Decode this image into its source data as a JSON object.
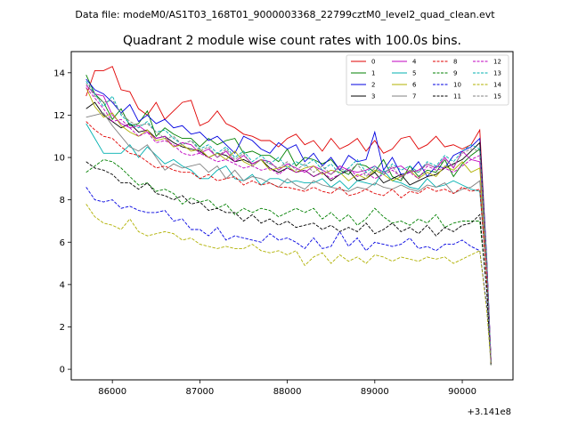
{
  "header": {
    "suptitle": "Data file: modeM0/AS1T03_168T01_9000003368_22799cztM0_level2_quad_clean.evt",
    "title": "Quadrant 2 module wise count rates with 100.0s bins."
  },
  "chart_data": {
    "type": "line",
    "title": "Quadrant 2 module wise count rates with 100.0s bins.",
    "xlabel": "",
    "ylabel": "",
    "x_offset_label": "+3.141e8",
    "xlim": [
      85530,
      90580
    ],
    "ylim": [
      -0.5,
      15
    ],
    "xticks": [
      86000,
      87000,
      88000,
      89000,
      90000
    ],
    "xtick_labels": [
      "86000",
      "87000",
      "88000",
      "89000",
      "90000"
    ],
    "yticks": [
      0,
      2,
      4,
      6,
      8,
      10,
      12,
      14
    ],
    "ytick_labels": [
      "0",
      "2",
      "4",
      "6",
      "8",
      "10",
      "12",
      "14"
    ],
    "grid": false,
    "legend_position": "top-right",
    "x": [
      85700,
      85800,
      85900,
      86000,
      86100,
      86200,
      86300,
      86400,
      86500,
      86600,
      86700,
      86800,
      86900,
      87000,
      87100,
      87200,
      87300,
      87400,
      87500,
      87600,
      87700,
      87800,
      87900,
      88000,
      88100,
      88200,
      88300,
      88400,
      88500,
      88600,
      88700,
      88800,
      88900,
      89000,
      89100,
      89200,
      89300,
      89400,
      89500,
      89600,
      89700,
      89800,
      89900,
      90000,
      90100,
      90200,
      90280,
      90330
    ],
    "series": [
      {
        "name": "0",
        "color": "#e00000",
        "dash": "solid",
        "values": [
          12.9,
          14.1,
          14.1,
          14.3,
          13.2,
          13.1,
          12.3,
          12.0,
          12.6,
          11.8,
          12.2,
          12.6,
          12.7,
          11.5,
          11.7,
          12.2,
          11.6,
          11.4,
          11.1,
          11.0,
          10.8,
          10.8,
          10.5,
          10.9,
          11.1,
          10.6,
          10.8,
          10.3,
          10.9,
          10.4,
          10.6,
          10.9,
          10.3,
          10.8,
          10.2,
          10.4,
          10.9,
          11.0,
          10.4,
          10.6,
          11.0,
          10.5,
          10.6,
          10.4,
          10.6,
          11.3,
          5.2,
          0.3
        ]
      },
      {
        "name": "1",
        "color": "#008000",
        "dash": "solid",
        "values": [
          13.9,
          13.0,
          12.6,
          11.8,
          12.3,
          11.5,
          11.6,
          12.2,
          11.0,
          11.4,
          11.1,
          10.9,
          10.9,
          10.5,
          10.9,
          10.6,
          10.8,
          10.9,
          10.2,
          10.3,
          10.1,
          10.1,
          9.8,
          10.4,
          9.6,
          10.0,
          9.9,
          9.7,
          9.9,
          9.4,
          9.2,
          9.7,
          9.6,
          9.3,
          9.9,
          9.1,
          8.9,
          9.6,
          9.1,
          9.4,
          9.3,
          9.9,
          9.1,
          9.7,
          10.1,
          10.4,
          4.9,
          0.2
        ]
      },
      {
        "name": "2",
        "color": "#0000e0",
        "dash": "solid",
        "values": [
          13.7,
          13.2,
          13.0,
          12.6,
          12.1,
          12.5,
          11.7,
          12.0,
          11.6,
          11.8,
          11.4,
          11.5,
          11.1,
          11.2,
          10.8,
          11.0,
          10.6,
          10.2,
          11.0,
          10.8,
          10.4,
          10.2,
          10.7,
          10.4,
          10.6,
          9.8,
          10.2,
          9.6,
          10.0,
          9.4,
          10.1,
          9.8,
          9.9,
          11.2,
          9.4,
          10.0,
          9.2,
          9.3,
          9.8,
          9.1,
          9.6,
          9.5,
          10.1,
          10.3,
          10.5,
          10.9,
          5.3,
          0.3
        ]
      },
      {
        "name": "3",
        "color": "#000000",
        "dash": "solid",
        "values": [
          12.3,
          12.6,
          12.0,
          11.7,
          11.4,
          11.6,
          11.2,
          11.3,
          10.9,
          11.0,
          10.7,
          10.5,
          10.4,
          10.3,
          10.0,
          10.2,
          10.1,
          9.8,
          9.9,
          9.7,
          9.9,
          9.5,
          9.3,
          9.5,
          9.3,
          9.4,
          9.1,
          9.3,
          8.9,
          9.2,
          9.4,
          8.9,
          9.0,
          9.3,
          8.8,
          9.0,
          9.2,
          8.7,
          8.9,
          9.1,
          9.2,
          9.5,
          9.7,
          9.9,
          10.3,
          10.7,
          5.1,
          0.2
        ]
      },
      {
        "name": "4",
        "color": "#c000c0",
        "dash": "solid",
        "values": [
          13.4,
          13.0,
          12.9,
          12.0,
          11.6,
          11.4,
          11.5,
          11.2,
          10.9,
          11.0,
          10.5,
          10.7,
          10.6,
          10.2,
          10.4,
          10.0,
          10.3,
          9.8,
          10.1,
          9.7,
          9.9,
          9.8,
          9.4,
          9.7,
          9.5,
          9.3,
          9.6,
          9.4,
          9.2,
          9.6,
          9.4,
          9.3,
          9.4,
          9.6,
          9.3,
          9.5,
          9.6,
          9.3,
          9.4,
          9.7,
          9.5,
          10.0,
          9.5,
          10.3,
          9.9,
          9.8,
          5.0,
          0.3
        ]
      },
      {
        "name": "5",
        "color": "#00b0b0",
        "dash": "solid",
        "values": [
          11.6,
          10.9,
          10.2,
          10.2,
          10.2,
          10.6,
          10.0,
          10.5,
          10.1,
          9.7,
          9.9,
          9.6,
          9.4,
          9.0,
          9.0,
          9.4,
          9.6,
          9.0,
          8.9,
          9.2,
          8.7,
          9.0,
          9.0,
          8.8,
          8.9,
          8.8,
          8.8,
          9.0,
          8.6,
          8.9,
          8.5,
          8.9,
          8.8,
          8.7,
          9.4,
          8.9,
          8.8,
          8.6,
          8.5,
          9.0,
          8.6,
          8.7,
          8.9,
          8.7,
          8.5,
          8.4,
          4.5,
          0.2
        ]
      },
      {
        "name": "6",
        "color": "#b0b000",
        "dash": "solid",
        "values": [
          13.3,
          12.4,
          11.9,
          12.1,
          11.5,
          11.2,
          11.0,
          11.3,
          10.8,
          10.9,
          10.5,
          10.6,
          10.3,
          10.4,
          10.0,
          10.2,
          9.9,
          10.3,
          9.8,
          9.6,
          9.9,
          9.4,
          9.5,
          9.6,
          9.3,
          9.5,
          9.6,
          9.2,
          9.4,
          9.3,
          8.9,
          9.2,
          9.0,
          9.4,
          9.2,
          8.9,
          9.1,
          9.4,
          9.0,
          9.3,
          9.1,
          9.6,
          9.4,
          9.8,
          9.3,
          9.5,
          4.9,
          0.2
        ]
      },
      {
        "name": "7",
        "color": "#808080",
        "dash": "solid",
        "values": [
          11.9,
          12.0,
          12.1,
          11.5,
          11.0,
          10.5,
          10.3,
          10.6,
          10.0,
          9.4,
          9.7,
          9.5,
          9.6,
          9.7,
          9.3,
          9.6,
          9.0,
          9.4,
          8.9,
          9.1,
          9.0,
          8.8,
          8.6,
          9.0,
          8.7,
          8.5,
          8.9,
          8.7,
          8.6,
          8.5,
          8.4,
          8.6,
          8.5,
          8.8,
          8.6,
          8.5,
          8.7,
          8.5,
          8.4,
          8.7,
          8.6,
          8.8,
          8.3,
          8.5,
          8.6,
          8.9,
          4.5,
          0.2
        ]
      },
      {
        "name": "8",
        "color": "#e00000",
        "dash": "dashed",
        "values": [
          11.7,
          11.3,
          11.0,
          10.9,
          10.5,
          10.2,
          10.1,
          9.8,
          9.5,
          9.6,
          9.4,
          9.3,
          9.3,
          9.0,
          9.2,
          8.9,
          9.0,
          9.1,
          8.7,
          8.9,
          8.7,
          8.8,
          8.6,
          8.6,
          8.5,
          8.4,
          8.6,
          8.4,
          8.3,
          8.6,
          8.2,
          8.3,
          8.5,
          8.3,
          8.2,
          8.5,
          8.1,
          8.4,
          8.3,
          8.6,
          8.4,
          8.5,
          8.3,
          8.6,
          8.4,
          8.5,
          4.3,
          0.2
        ]
      },
      {
        "name": "9",
        "color": "#008000",
        "dash": "dashed",
        "values": [
          9.3,
          9.6,
          9.9,
          9.8,
          9.5,
          9.1,
          8.7,
          8.8,
          8.4,
          8.5,
          8.3,
          7.8,
          8.1,
          7.9,
          8.0,
          7.6,
          7.8,
          7.3,
          7.6,
          7.4,
          7.6,
          7.5,
          7.2,
          7.4,
          7.6,
          7.4,
          7.6,
          7.1,
          7.4,
          7.0,
          7.3,
          6.8,
          7.1,
          7.6,
          7.2,
          6.9,
          7.0,
          6.8,
          7.1,
          6.9,
          7.3,
          6.7,
          6.9,
          7.0,
          7.0,
          7.0,
          3.8,
          0.2
        ]
      },
      {
        "name": "10",
        "color": "#0000e0",
        "dash": "dashed",
        "values": [
          8.6,
          8.0,
          7.9,
          8.0,
          7.6,
          7.7,
          7.5,
          7.4,
          7.4,
          7.5,
          7.0,
          7.1,
          6.6,
          6.6,
          6.3,
          6.7,
          6.1,
          6.3,
          6.2,
          6.1,
          6.0,
          6.4,
          6.1,
          6.2,
          6.0,
          5.7,
          6.2,
          5.7,
          5.8,
          6.5,
          5.8,
          6.2,
          5.6,
          6.0,
          5.9,
          5.8,
          5.9,
          6.2,
          5.7,
          5.8,
          5.6,
          5.9,
          5.9,
          6.1,
          5.8,
          5.6,
          3.0,
          0.2
        ]
      },
      {
        "name": "11",
        "color": "#000000",
        "dash": "dashed",
        "values": [
          9.8,
          9.5,
          9.4,
          9.2,
          8.8,
          8.8,
          8.5,
          8.8,
          8.3,
          8.2,
          8.0,
          8.2,
          7.8,
          7.9,
          7.5,
          7.6,
          7.4,
          7.4,
          7.0,
          7.3,
          6.9,
          7.1,
          6.8,
          7.0,
          6.7,
          6.8,
          6.9,
          6.6,
          6.8,
          6.5,
          6.7,
          6.5,
          6.9,
          6.4,
          6.6,
          6.9,
          6.5,
          6.7,
          6.4,
          6.8,
          6.3,
          6.7,
          6.5,
          6.8,
          6.9,
          7.3,
          3.7,
          0.2
        ]
      },
      {
        "name": "12",
        "color": "#c000c0",
        "dash": "dashed",
        "values": [
          13.3,
          12.8,
          12.3,
          11.7,
          11.8,
          11.4,
          11.0,
          11.2,
          10.7,
          10.8,
          10.6,
          10.2,
          10.1,
          10.2,
          10.0,
          9.8,
          9.9,
          9.7,
          9.5,
          9.6,
          9.4,
          9.5,
          9.2,
          9.5,
          9.3,
          9.4,
          9.1,
          9.3,
          9.0,
          9.2,
          9.5,
          9.1,
          9.3,
          9.0,
          9.2,
          9.4,
          9.1,
          9.3,
          9.0,
          9.6,
          9.4,
          9.5,
          9.3,
          9.6,
          9.9,
          10.1,
          5.1,
          0.3
        ]
      },
      {
        "name": "13",
        "color": "#00b0b0",
        "dash": "dashed",
        "values": [
          13.6,
          13.0,
          12.4,
          12.9,
          12.0,
          11.6,
          11.4,
          11.7,
          11.2,
          11.3,
          10.9,
          10.6,
          10.8,
          10.4,
          10.6,
          10.2,
          10.5,
          10.0,
          10.3,
          9.8,
          10.1,
          9.7,
          10.0,
          9.5,
          9.8,
          9.6,
          9.9,
          9.4,
          9.7,
          9.2,
          9.5,
          9.9,
          9.3,
          9.6,
          9.2,
          9.7,
          9.4,
          9.6,
          9.3,
          9.8,
          9.6,
          10.1,
          9.8,
          10.3,
          10.6,
          10.4,
          5.2,
          0.2
        ]
      },
      {
        "name": "14",
        "color": "#b0b000",
        "dash": "dashed",
        "values": [
          7.8,
          7.2,
          6.9,
          6.8,
          6.6,
          7.1,
          6.5,
          6.3,
          6.4,
          6.5,
          6.4,
          6.1,
          6.2,
          5.9,
          5.8,
          5.7,
          5.8,
          5.7,
          5.7,
          5.9,
          5.6,
          5.5,
          5.6,
          5.4,
          5.6,
          4.9,
          5.3,
          5.5,
          5.0,
          5.4,
          5.1,
          5.3,
          5.0,
          5.4,
          5.3,
          5.1,
          5.3,
          5.2,
          5.1,
          5.3,
          5.2,
          5.3,
          5.0,
          5.2,
          5.4,
          5.6,
          2.8,
          0.2
        ]
      },
      {
        "name": "15",
        "color": "#808080",
        "dash": "dashed",
        "values": [
          13.5,
          12.9,
          12.6,
          12.7,
          12.1,
          11.7,
          11.5,
          11.6,
          11.2,
          10.9,
          11.0,
          10.6,
          10.8,
          10.3,
          10.5,
          10.0,
          10.4,
          9.9,
          10.2,
          9.6,
          9.9,
          9.7,
          9.5,
          9.8,
          9.4,
          9.7,
          9.3,
          9.6,
          9.2,
          9.5,
          9.3,
          9.7,
          9.1,
          9.5,
          9.2,
          9.6,
          9.0,
          9.4,
          9.3,
          9.7,
          9.5,
          9.9,
          9.6,
          10.2,
          10.4,
          10.3,
          5.1,
          0.2
        ]
      }
    ]
  }
}
